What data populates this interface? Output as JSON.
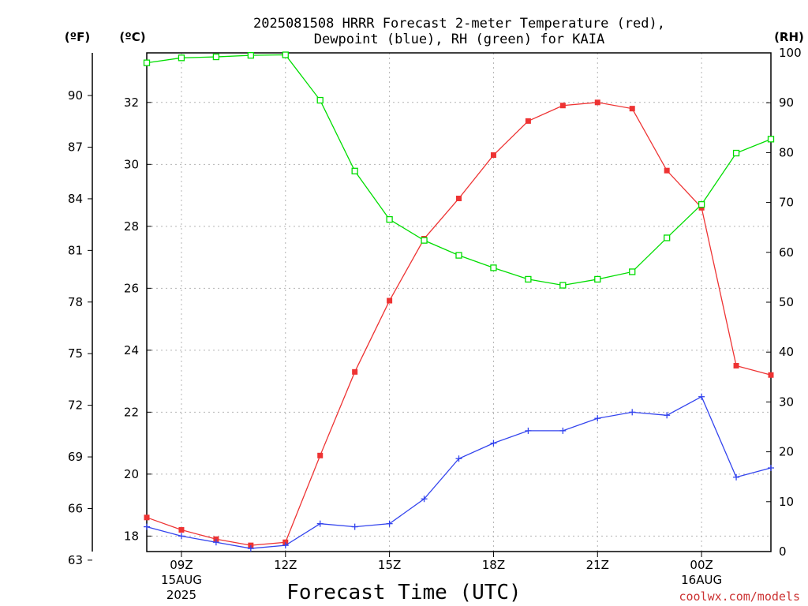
{
  "chart_data": {
    "type": "line",
    "title_line1": "2025081508 HRRR Forecast 2-meter Temperature (red),",
    "title_line2": "Dewpoint (blue), RH (green) for KAIA",
    "unit_f": "(ºF)",
    "unit_c": "(ºC)",
    "unit_rh": "(RH)",
    "xlabel": "Forecast Time (UTC)",
    "credit": "coolwx.com/models",
    "x_hours": [
      8,
      9,
      10,
      11,
      12,
      13,
      14,
      15,
      16,
      17,
      18,
      19,
      20,
      21,
      22,
      23,
      24,
      25,
      26
    ],
    "xlim": [
      8,
      26
    ],
    "x_ticks": [
      {
        "hour": 9,
        "line1": "09Z",
        "line2": "15AUG",
        "line3": "2025"
      },
      {
        "hour": 12,
        "line1": "12Z",
        "line2": "",
        "line3": ""
      },
      {
        "hour": 15,
        "line1": "15Z",
        "line2": "",
        "line3": ""
      },
      {
        "hour": 18,
        "line1": "18Z",
        "line2": "",
        "line3": ""
      },
      {
        "hour": 21,
        "line1": "21Z",
        "line2": "",
        "line3": ""
      },
      {
        "hour": 24,
        "line1": "00Z",
        "line2": "16AUG",
        "line3": ""
      }
    ],
    "y_celsius": {
      "lim": [
        17.5,
        33.6
      ],
      "ticks": [
        "18",
        "20",
        "22",
        "24",
        "26",
        "28",
        "30",
        "32"
      ]
    },
    "y_fahrenheit": {
      "ticks": [
        "63",
        "66",
        "69",
        "72",
        "75",
        "78",
        "81",
        "84",
        "87",
        "90"
      ]
    },
    "y_rh": {
      "lim": [
        0,
        100
      ],
      "ticks": [
        "0",
        "10",
        "20",
        "30",
        "40",
        "50",
        "60",
        "70",
        "80",
        "90",
        "100"
      ]
    },
    "grid": true,
    "series": [
      {
        "key": "temperature",
        "axis": "celsius",
        "color": "#ee3333",
        "marker": "filled-square",
        "values": [
          18.6,
          18.2,
          17.9,
          17.7,
          17.8,
          20.6,
          23.3,
          25.6,
          27.6,
          28.9,
          30.3,
          31.4,
          31.9,
          32.0,
          31.8,
          29.8,
          28.6,
          23.5,
          23.2
        ]
      },
      {
        "key": "dewpoint",
        "axis": "celsius",
        "color": "#3344ee",
        "marker": "plus",
        "values": [
          18.3,
          18.0,
          17.8,
          17.6,
          17.7,
          18.4,
          18.3,
          18.4,
          19.2,
          20.5,
          21.0,
          21.4,
          21.4,
          21.8,
          22.0,
          21.9,
          22.5,
          19.9,
          20.2
        ]
      },
      {
        "key": "rh",
        "axis": "rh",
        "color": "#00dd00",
        "marker": "open-square",
        "values": [
          98,
          99,
          99.2,
          99.5,
          99.6,
          90.5,
          76.3,
          66.6,
          62.4,
          59.4,
          56.9,
          54.6,
          53.4,
          54.6,
          56.1,
          62.9,
          69.6,
          79.9,
          82.7
        ]
      }
    ]
  }
}
